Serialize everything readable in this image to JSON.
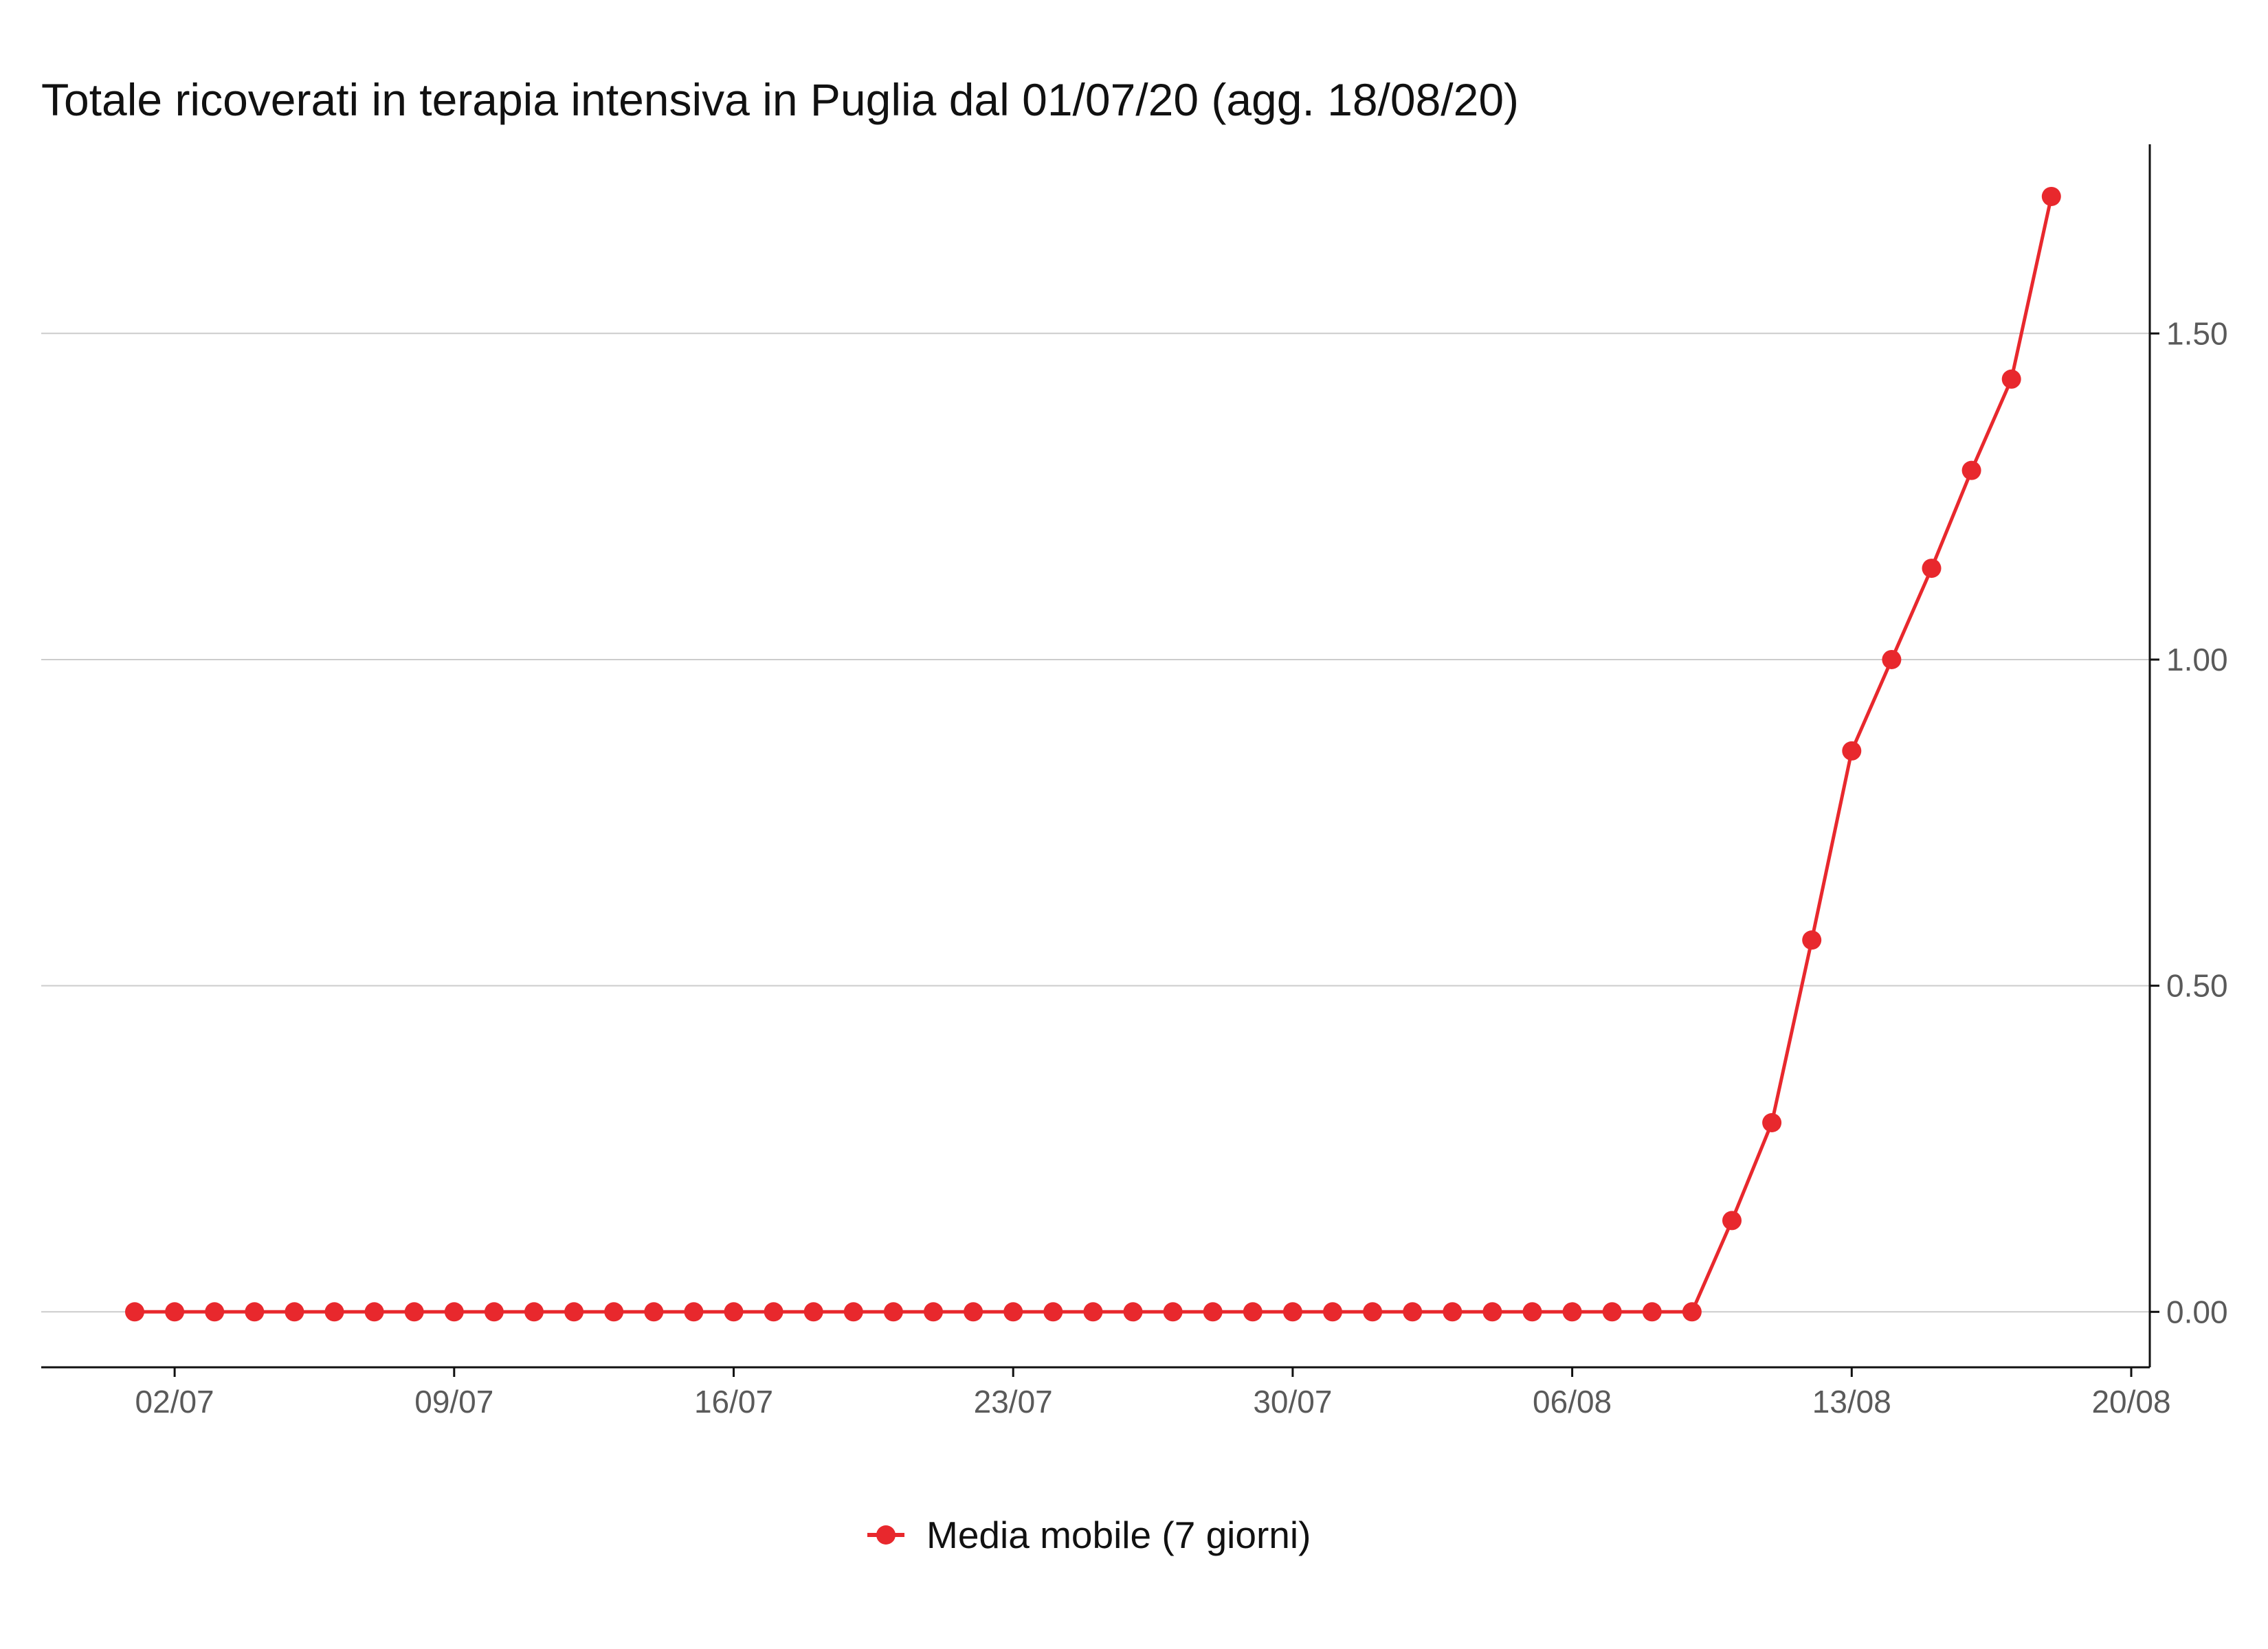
{
  "chart_data": {
    "type": "line",
    "title": "Totale ricoverati in terapia intensiva in Puglia dal 01/07/20 (agg. 18/08/20)",
    "xlabel": "",
    "ylabel": "",
    "y_axis_position": "right",
    "ylim": [
      -0.085,
      1.79
    ],
    "y_ticks": [
      0.0,
      0.5,
      1.0,
      1.5
    ],
    "y_tick_labels": [
      "0.00",
      "0.50",
      "1.00",
      "1.50"
    ],
    "x_tick_labels": [
      "02/07",
      "09/07",
      "16/07",
      "23/07",
      "30/07",
      "06/08",
      "13/08",
      "20/08"
    ],
    "grid": "horizontal",
    "legend_position": "bottom",
    "colors": {
      "series": "#e8282d",
      "grid": "#cccccc",
      "axis": "#111111"
    },
    "series": [
      {
        "name": "Media mobile (7 giorni)",
        "x": [
          "01/07",
          "02/07",
          "03/07",
          "04/07",
          "05/07",
          "06/07",
          "07/07",
          "08/07",
          "09/07",
          "10/07",
          "11/07",
          "12/07",
          "13/07",
          "14/07",
          "15/07",
          "16/07",
          "17/07",
          "18/07",
          "19/07",
          "20/07",
          "21/07",
          "22/07",
          "23/07",
          "24/07",
          "25/07",
          "26/07",
          "27/07",
          "28/07",
          "29/07",
          "30/07",
          "31/07",
          "01/08",
          "02/08",
          "03/08",
          "04/08",
          "05/08",
          "06/08",
          "07/08",
          "08/08",
          "09/08",
          "10/08",
          "11/08",
          "12/08",
          "13/08",
          "14/08",
          "15/08",
          "16/08",
          "17/08",
          "18/08"
        ],
        "values": [
          0,
          0,
          0,
          0,
          0,
          0,
          0,
          0,
          0,
          0,
          0,
          0,
          0,
          0,
          0,
          0,
          0,
          0,
          0,
          0,
          0,
          0,
          0,
          0,
          0,
          0,
          0,
          0,
          0,
          0,
          0,
          0,
          0,
          0,
          0,
          0,
          0,
          0,
          0,
          0,
          0.14,
          0.29,
          0.57,
          0.86,
          1.0,
          1.14,
          1.29,
          1.43,
          1.71
        ]
      }
    ]
  }
}
